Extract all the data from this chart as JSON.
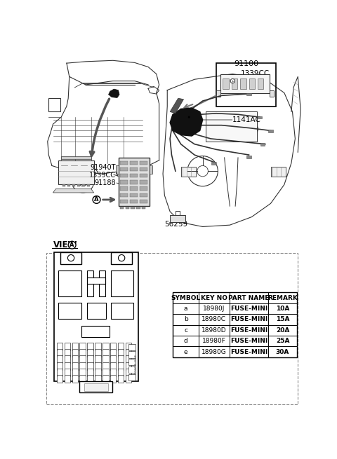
{
  "bg_color": "#ffffff",
  "part_number_top": "91100",
  "label_1339CC_top": "1339CC",
  "label_1141AC": "1141AC",
  "label_91940T": "91940T",
  "label_1339CC_mid": "1339CC",
  "label_91188": "91188",
  "label_56259": "56259",
  "view_label": "VIEW",
  "table": {
    "headers": [
      "SYMBOL",
      "KEY NO",
      "PART NAME",
      "REMARK"
    ],
    "rows": [
      [
        "a",
        "18980J",
        "FUSE-MINI",
        "10A"
      ],
      [
        "b",
        "18980C",
        "FUSE-MINI",
        "15A"
      ],
      [
        "c",
        "18980D",
        "FUSE-MINI",
        "20A"
      ],
      [
        "d",
        "18980F",
        "FUSE-MINI",
        "25A"
      ],
      [
        "e",
        "18980G",
        "FUSE-MINI",
        "30A"
      ]
    ]
  }
}
